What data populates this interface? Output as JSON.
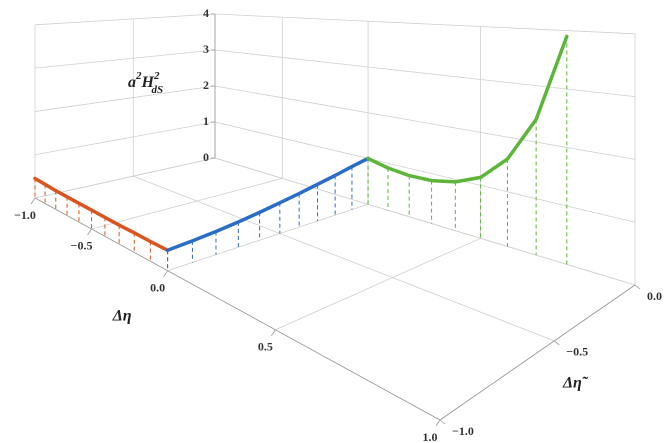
{
  "chart_data": {
    "type": "line3d",
    "x_label": "Δη",
    "y_label": "Δη̃",
    "z_label": [
      "a",
      "2",
      "H",
      "2",
      "dS"
    ],
    "xlim": [
      -1,
      1
    ],
    "ylim": [
      -1,
      0
    ],
    "zlim": [
      0,
      4
    ],
    "xticks": [
      {
        "value": -1,
        "label": "−1.0"
      },
      {
        "value": -0.5,
        "label": "−0.5"
      },
      {
        "value": 0,
        "label": "0.0"
      },
      {
        "value": 0.5,
        "label": "0.5"
      },
      {
        "value": 1,
        "label": "1.0"
      }
    ],
    "yticks": [
      {
        "value": -1,
        "label": "−1.0"
      },
      {
        "value": -0.5,
        "label": "−0.5"
      },
      {
        "value": 0,
        "label": "0.0"
      }
    ],
    "zticks": [
      0,
      1,
      2,
      3,
      4
    ],
    "grid": true,
    "series": [
      {
        "color": "#d9541e",
        "x": [
          -1,
          -0.9,
          -0.8,
          -0.7,
          -0.6,
          -0.5,
          -0.4,
          -0.3,
          -0.2,
          -0.1,
          0
        ],
        "y": [
          -1,
          -1,
          -1,
          -1,
          -1,
          -1,
          -1,
          -1,
          -1,
          -1,
          -1
        ],
        "values": [
          0.45,
          0.43,
          0.41,
          0.4,
          0.39,
          0.38,
          0.37,
          0.36,
          0.36,
          0.35,
          0.35
        ]
      },
      {
        "color": "#2a6dc6",
        "x": [
          0,
          0,
          0,
          0,
          0,
          0,
          0,
          0,
          0,
          0,
          0
        ],
        "y": [
          -1,
          -0.9,
          -0.8,
          -0.7,
          -0.6,
          -0.5,
          -0.4,
          -0.3,
          -0.2,
          -0.1,
          0
        ],
        "values": [
          0.35,
          0.38,
          0.42,
          0.47,
          0.53,
          0.6,
          0.67,
          0.75,
          0.83,
          0.92,
          1.0
        ]
      },
      {
        "color": "#5db53a",
        "x": [
          0,
          0.1,
          0.2,
          0.3,
          0.4,
          0.5,
          0.6,
          0.7,
          0.8
        ],
        "y": [
          0,
          0,
          0,
          0,
          0,
          0,
          0,
          0,
          0
        ],
        "values": [
          1.0,
          0.9,
          0.85,
          0.86,
          0.95,
          1.15,
          1.6,
          2.4,
          3.9
        ]
      }
    ]
  }
}
